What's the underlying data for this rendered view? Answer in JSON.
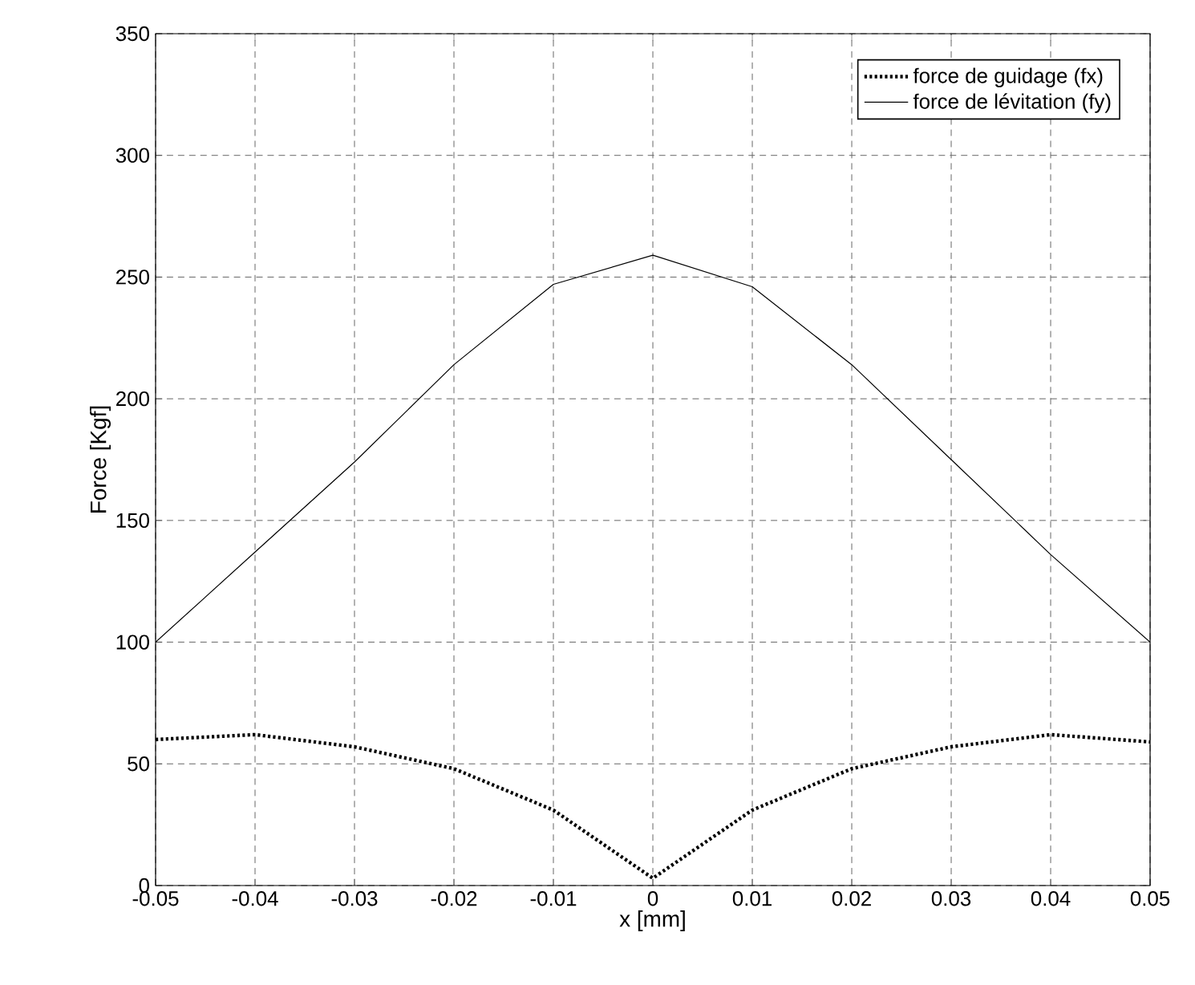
{
  "chart_data": {
    "type": "line",
    "xlabel": "x [mm]",
    "ylabel": "Force [Kgf]",
    "x": [
      -0.05,
      -0.04,
      -0.03,
      -0.02,
      -0.01,
      0,
      0.01,
      0.02,
      0.03,
      0.04,
      0.05
    ],
    "series": [
      {
        "name": "force de guidage (fx)",
        "color": "#000000",
        "line_style": "dotted",
        "values": [
          60,
          62,
          57,
          48,
          31,
          3,
          31,
          48,
          57,
          62,
          59
        ]
      },
      {
        "name": "force de lévitation (fy)",
        "color": "#000000",
        "line_style": "solid",
        "values": [
          100,
          137,
          174,
          214,
          247,
          259,
          246,
          214,
          175,
          136,
          100
        ]
      }
    ],
    "xlim": [
      -0.05,
      0.05
    ],
    "ylim": [
      0,
      350
    ],
    "xticks": [
      -0.05,
      -0.04,
      -0.03,
      -0.02,
      -0.01,
      0,
      0.01,
      0.02,
      0.03,
      0.04,
      0.05
    ],
    "yticks": [
      0,
      50,
      100,
      150,
      200,
      250,
      300,
      350
    ],
    "grid": true,
    "legend": "top right",
    "marker": "none"
  }
}
